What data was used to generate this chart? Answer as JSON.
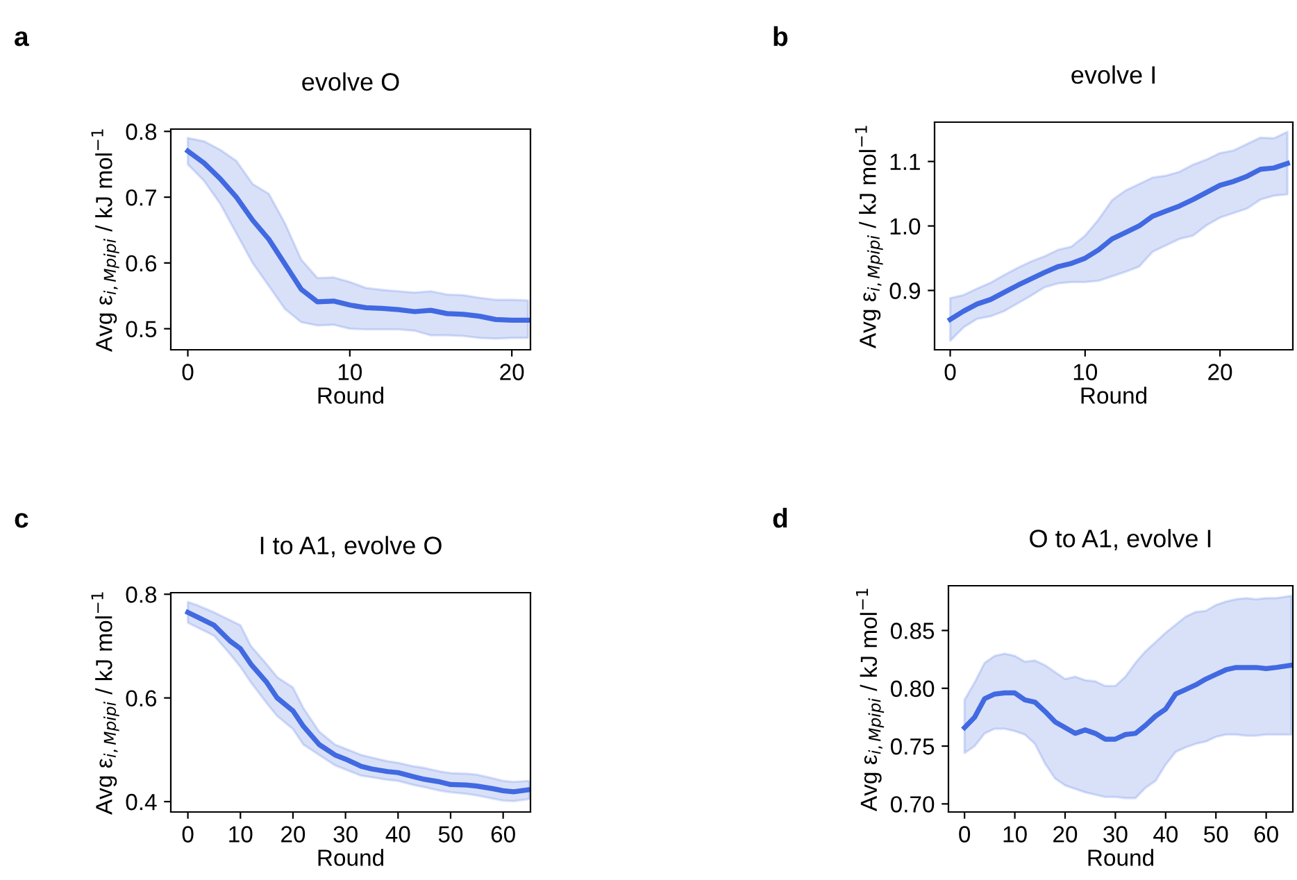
{
  "chart_data": [
    {
      "type": "line",
      "title": "evolve O",
      "xlabel": "Round",
      "ylabel": "Avg ε$_{i,Mpipi}$ / kJ mol$^{−1}$",
      "annotations": [
        "a"
      ],
      "xlim": [
        -1.05,
        21.15
      ],
      "ylim": [
        0.468,
        0.8035
      ],
      "xticks": [
        0,
        10,
        20
      ],
      "yticks": [
        0.5,
        0.6,
        0.7,
        0.8
      ],
      "grid": false,
      "legend": false,
      "series": [
        {
          "color": "#4169e1",
          "x": [
            0,
            1,
            2,
            3,
            4,
            5,
            6,
            7,
            8,
            9,
            10,
            11,
            12,
            13,
            14,
            15,
            16,
            17,
            18,
            19,
            20,
            21
          ],
          "values": [
            0.77,
            0.752,
            0.728,
            0.7,
            0.665,
            0.636,
            0.598,
            0.56,
            0.541,
            0.542,
            0.536,
            0.532,
            0.531,
            0.529,
            0.526,
            0.528,
            0.523,
            0.522,
            0.519,
            0.514,
            0.513,
            0.513
          ],
          "upper": [
            0.79,
            0.785,
            0.772,
            0.755,
            0.72,
            0.705,
            0.66,
            0.605,
            0.577,
            0.578,
            0.571,
            0.562,
            0.559,
            0.557,
            0.555,
            0.557,
            0.552,
            0.551,
            0.547,
            0.544,
            0.544,
            0.543
          ],
          "lower": [
            0.75,
            0.725,
            0.69,
            0.645,
            0.6,
            0.565,
            0.53,
            0.51,
            0.505,
            0.506,
            0.5,
            0.499,
            0.499,
            0.499,
            0.497,
            0.49,
            0.49,
            0.489,
            0.486,
            0.485,
            0.486,
            0.486
          ]
        }
      ]
    },
    {
      "type": "line",
      "title": "evolve I",
      "xlabel": "Round",
      "ylabel": "Avg ε$_{i,Mpipi}$ / kJ mol$^{−1}$",
      "annotations": [
        "b"
      ],
      "xlim": [
        -1.16,
        25.4
      ],
      "ylim": [
        0.808,
        1.161
      ],
      "xticks": [
        0,
        10,
        20
      ],
      "yticks": [
        0.9,
        {
          "value": 1.0,
          "label": "1.0"
        },
        1.1
      ],
      "grid": false,
      "legend": false,
      "series": [
        {
          "color": "#4169e1",
          "x": [
            0,
            1,
            2,
            3,
            4,
            5,
            6,
            7,
            8,
            9,
            10,
            11,
            12,
            13,
            14,
            15,
            16,
            17,
            18,
            19,
            20,
            21,
            22,
            23,
            24,
            25
          ],
          "values": [
            0.855,
            0.868,
            0.879,
            0.886,
            0.897,
            0.908,
            0.918,
            0.928,
            0.937,
            0.942,
            0.95,
            0.963,
            0.98,
            0.99,
            1.0,
            1.015,
            1.023,
            1.031,
            1.041,
            1.052,
            1.063,
            1.069,
            1.077,
            1.088,
            1.09,
            1.097
          ],
          "upper": [
            0.888,
            0.893,
            0.903,
            0.912,
            0.924,
            0.935,
            0.945,
            0.953,
            0.963,
            0.968,
            0.985,
            1.01,
            1.04,
            1.055,
            1.065,
            1.075,
            1.078,
            1.084,
            1.095,
            1.103,
            1.113,
            1.117,
            1.127,
            1.137,
            1.136,
            1.146
          ],
          "lower": [
            0.822,
            0.843,
            0.856,
            0.86,
            0.868,
            0.88,
            0.892,
            0.905,
            0.911,
            0.913,
            0.913,
            0.915,
            0.922,
            0.929,
            0.937,
            0.96,
            0.97,
            0.98,
            0.985,
            1.001,
            1.013,
            1.02,
            1.027,
            1.041,
            1.047,
            1.049
          ]
        }
      ]
    },
    {
      "type": "line",
      "title": "I to A1, evolve O",
      "xlabel": "Round",
      "ylabel": "Avg ε$_{i,Mpipi}$ / kJ mol$^{−1}$",
      "annotations": [
        "c"
      ],
      "xlim": [
        -3.25,
        65.2
      ],
      "ylim": [
        0.38,
        0.803
      ],
      "xticks": [
        0,
        10,
        20,
        30,
        40,
        50,
        60
      ],
      "yticks": [
        0.4,
        0.6,
        0.8
      ],
      "grid": false,
      "legend": false,
      "series": [
        {
          "color": "#4169e1",
          "x": [
            0,
            2,
            5,
            8,
            10,
            12,
            15,
            17,
            20,
            22,
            25,
            28,
            30,
            33,
            35,
            38,
            40,
            43,
            45,
            48,
            50,
            53,
            55,
            58,
            60,
            62,
            65
          ],
          "values": [
            0.765,
            0.755,
            0.74,
            0.71,
            0.695,
            0.665,
            0.63,
            0.6,
            0.575,
            0.545,
            0.51,
            0.49,
            0.482,
            0.468,
            0.463,
            0.458,
            0.456,
            0.448,
            0.443,
            0.438,
            0.433,
            0.432,
            0.43,
            0.425,
            0.421,
            0.419,
            0.423
          ],
          "upper": [
            0.785,
            0.778,
            0.765,
            0.75,
            0.74,
            0.7,
            0.665,
            0.64,
            0.62,
            0.58,
            0.535,
            0.51,
            0.502,
            0.49,
            0.485,
            0.478,
            0.475,
            0.468,
            0.465,
            0.458,
            0.455,
            0.454,
            0.452,
            0.445,
            0.44,
            0.438,
            0.44
          ],
          "lower": [
            0.745,
            0.735,
            0.72,
            0.685,
            0.66,
            0.63,
            0.59,
            0.565,
            0.54,
            0.51,
            0.49,
            0.47,
            0.462,
            0.45,
            0.447,
            0.442,
            0.44,
            0.432,
            0.428,
            0.421,
            0.418,
            0.415,
            0.412,
            0.406,
            0.402,
            0.401,
            0.405
          ]
        }
      ]
    },
    {
      "type": "line",
      "title": "O to A1, evolve I",
      "xlabel": "Round",
      "ylabel": "Avg ε$_{i,Mpipi}$ / kJ mol$^{−1}$",
      "annotations": [
        "d"
      ],
      "xlim": [
        -3.2,
        65.3
      ],
      "ylim": [
        0.693,
        0.8887
      ],
      "xticks": [
        0,
        10,
        20,
        30,
        40,
        50,
        60
      ],
      "yticks": [
        {
          "value": 0.7,
          "label": "0.70"
        },
        {
          "value": 0.75,
          "label": "0.75"
        },
        {
          "value": 0.8,
          "label": "0.80"
        },
        {
          "value": 0.85,
          "label": "0.85"
        }
      ],
      "grid": false,
      "legend": false,
      "series": [
        {
          "color": "#4169e1",
          "x": [
            0,
            2,
            4,
            6,
            8,
            10,
            12,
            14,
            16,
            18,
            20,
            22,
            24,
            26,
            28,
            30,
            32,
            34,
            36,
            38,
            40,
            42,
            44,
            46,
            48,
            50,
            52,
            54,
            56,
            58,
            60,
            62,
            65
          ],
          "values": [
            0.766,
            0.775,
            0.791,
            0.795,
            0.796,
            0.796,
            0.79,
            0.788,
            0.78,
            0.771,
            0.766,
            0.761,
            0.764,
            0.761,
            0.756,
            0.756,
            0.76,
            0.761,
            0.768,
            0.776,
            0.782,
            0.795,
            0.799,
            0.803,
            0.808,
            0.812,
            0.816,
            0.818,
            0.818,
            0.818,
            0.817,
            0.818,
            0.82
          ],
          "upper": [
            0.79,
            0.805,
            0.822,
            0.828,
            0.83,
            0.828,
            0.823,
            0.824,
            0.82,
            0.814,
            0.808,
            0.81,
            0.807,
            0.806,
            0.802,
            0.802,
            0.81,
            0.822,
            0.832,
            0.84,
            0.848,
            0.855,
            0.862,
            0.866,
            0.867,
            0.872,
            0.875,
            0.877,
            0.878,
            0.877,
            0.878,
            0.878,
            0.88
          ],
          "lower": [
            0.744,
            0.75,
            0.761,
            0.765,
            0.765,
            0.763,
            0.76,
            0.752,
            0.735,
            0.722,
            0.716,
            0.713,
            0.71,
            0.708,
            0.706,
            0.706,
            0.705,
            0.705,
            0.714,
            0.72,
            0.734,
            0.745,
            0.749,
            0.752,
            0.754,
            0.758,
            0.76,
            0.76,
            0.759,
            0.759,
            0.76,
            0.76,
            0.76
          ]
        }
      ]
    }
  ]
}
